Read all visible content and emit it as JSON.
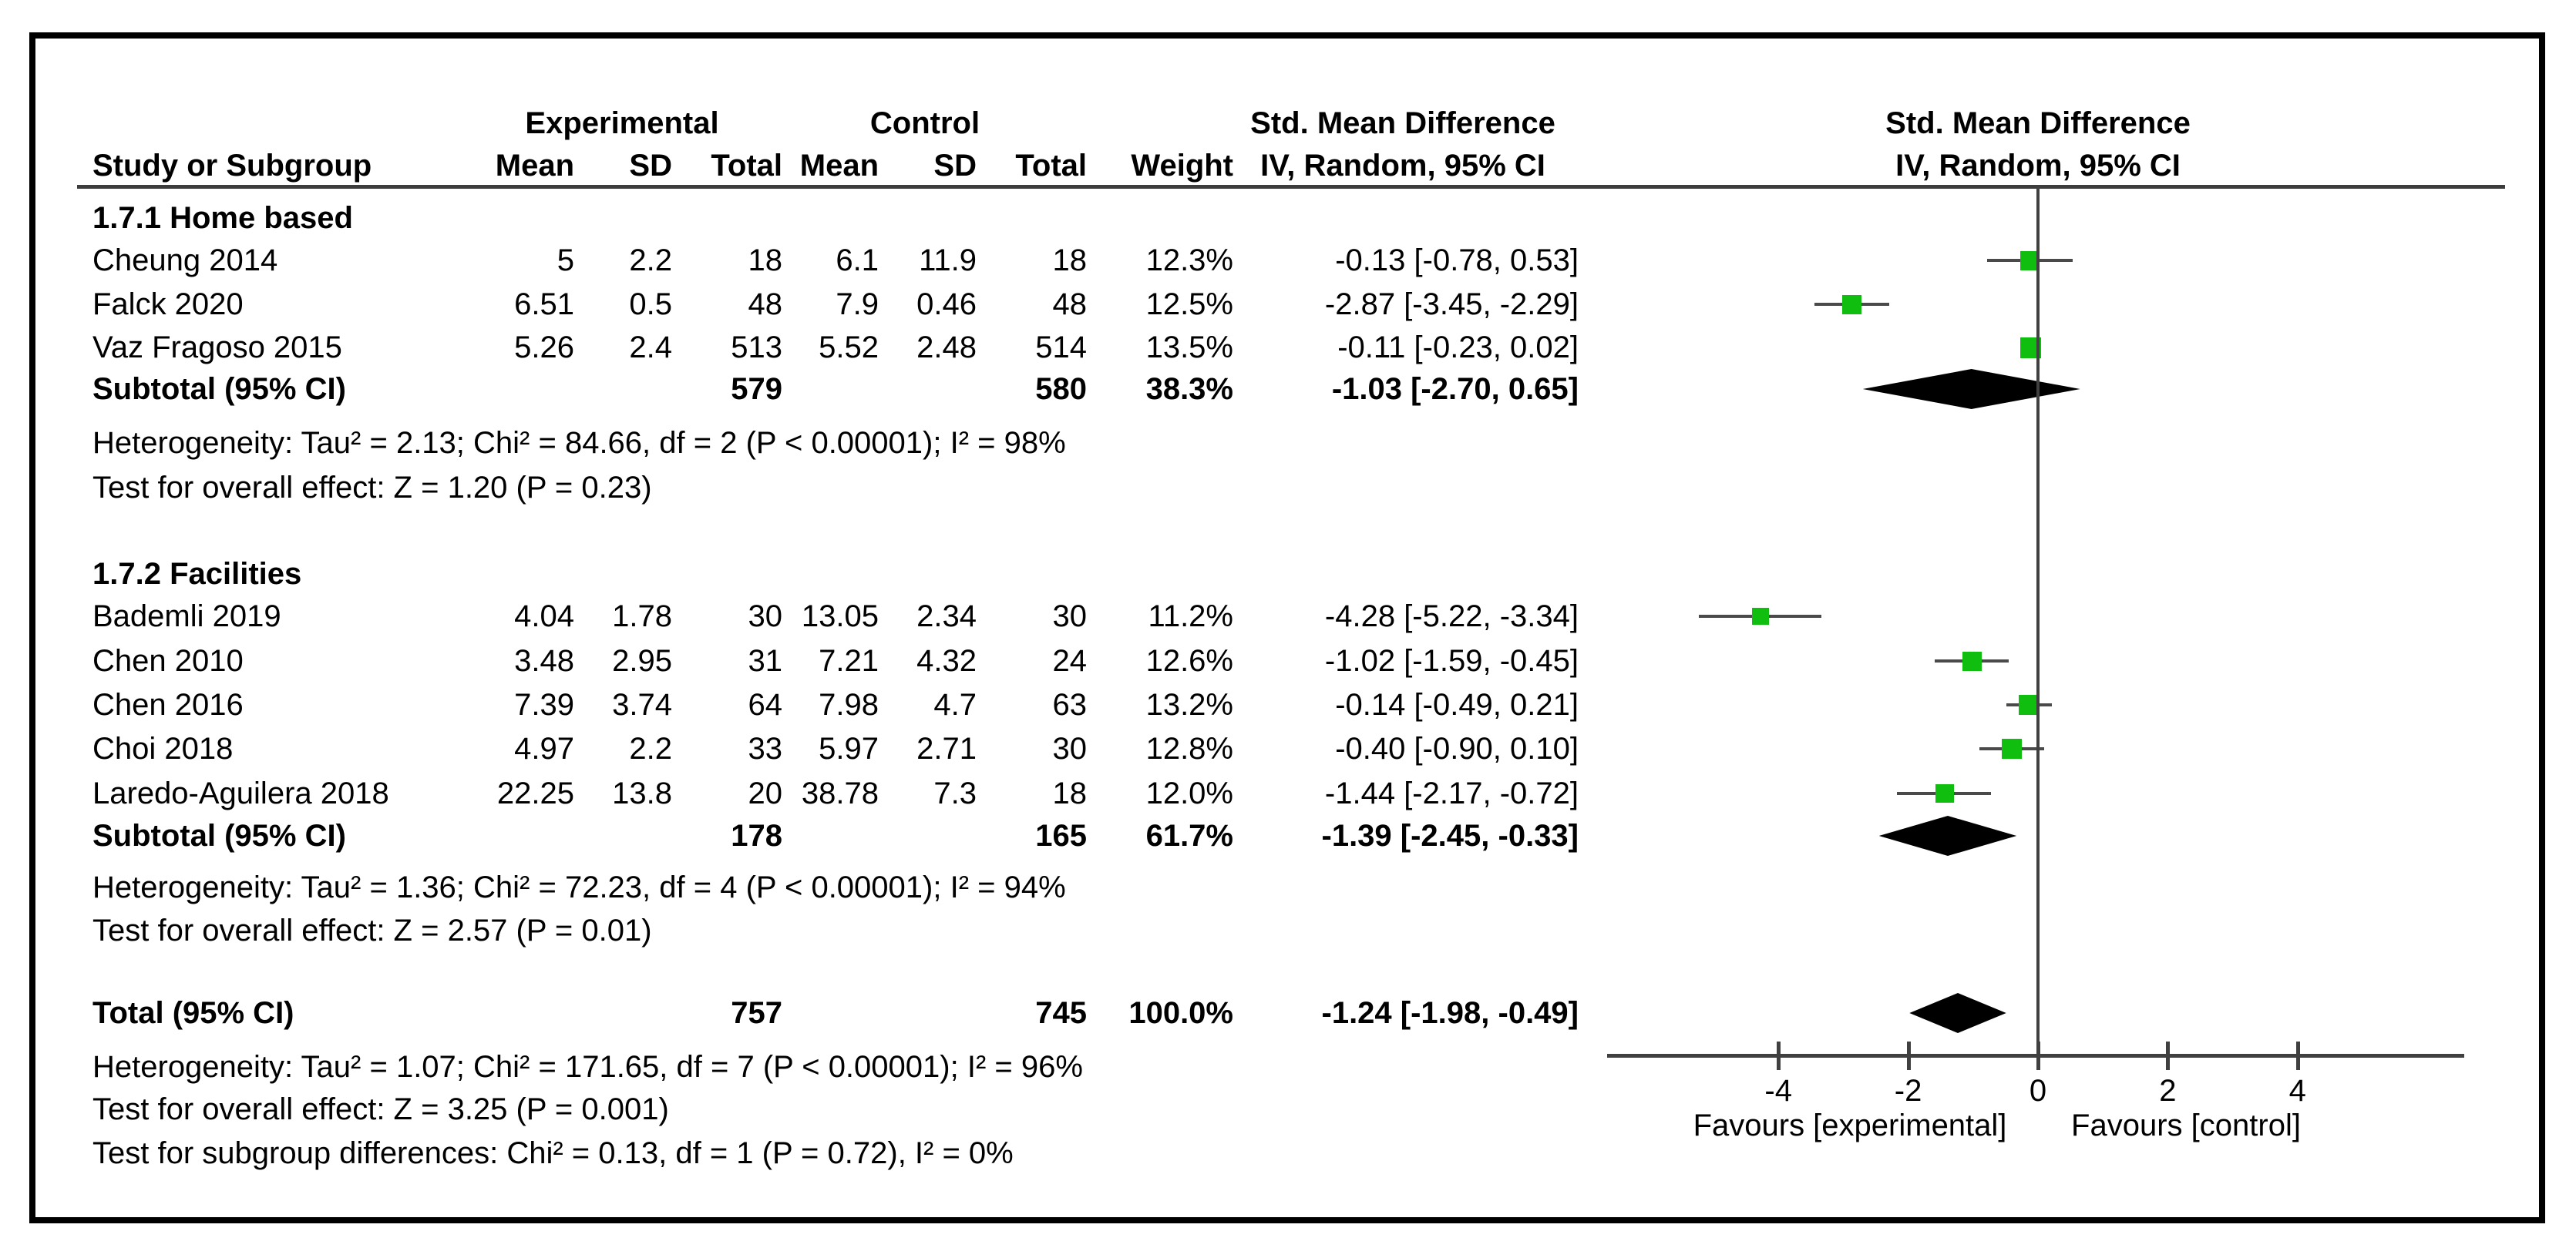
{
  "figure": {
    "columns": {
      "study": "Study or Subgroup",
      "experimental": "Experimental",
      "control": "Control",
      "mean": "Mean",
      "sd": "SD",
      "total": "Total",
      "weight": "Weight",
      "smd": "Std. Mean Difference",
      "method": "IV, Random, 95% CI"
    },
    "plot_header": {
      "line1": "Std. Mean Difference",
      "line2": "IV, Random, 95% CI"
    }
  },
  "chart_data": {
    "type": "forest",
    "effect_measure": "Std. Mean Difference",
    "method": "IV, Random, 95% CI",
    "axis": {
      "xmin": -6.7,
      "xmax": 6.7,
      "ticks": [
        -4,
        -2,
        0,
        2,
        4
      ],
      "zero_line": 0,
      "favours_left": "Favours [experimental]",
      "favours_right": "Favours [control]"
    },
    "colors": {
      "marker_square": "#0fbe0f",
      "ci_line": "#4a4a4a",
      "diamond": "#000000",
      "axis": "#404040"
    },
    "groups": [
      {
        "label": "1.7.1 Home based",
        "studies": [
          {
            "name": "Cheung 2014",
            "exp_mean": "5",
            "exp_sd": "2.2",
            "exp_total": "18",
            "ctrl_mean": "6.1",
            "ctrl_sd": "11.9",
            "ctrl_total": "18",
            "weight": "12.3%",
            "weight_value": 12.3,
            "ci_label": "-0.13 [-0.78, 0.53]",
            "est": -0.13,
            "lo": -0.78,
            "hi": 0.53
          },
          {
            "name": "Falck 2020",
            "exp_mean": "6.51",
            "exp_sd": "0.5",
            "exp_total": "48",
            "ctrl_mean": "7.9",
            "ctrl_sd": "0.46",
            "ctrl_total": "48",
            "weight": "12.5%",
            "weight_value": 12.5,
            "ci_label": "-2.87 [-3.45, -2.29]",
            "est": -2.87,
            "lo": -3.45,
            "hi": -2.29
          },
          {
            "name": "Vaz Fragoso 2015",
            "exp_mean": "5.26",
            "exp_sd": "2.4",
            "exp_total": "513",
            "ctrl_mean": "5.52",
            "ctrl_sd": "2.48",
            "ctrl_total": "514",
            "weight": "13.5%",
            "weight_value": 13.5,
            "ci_label": "-0.11 [-0.23, 0.02]",
            "est": -0.11,
            "lo": -0.23,
            "hi": 0.02
          }
        ],
        "subtotal": {
          "label": "Subtotal (95% CI)",
          "exp_total": "579",
          "ctrl_total": "580",
          "weight": "38.3%",
          "ci_label": "-1.03 [-2.70, 0.65]",
          "est": -1.03,
          "lo": -2.7,
          "hi": 0.65
        },
        "heterogeneity": "Heterogeneity: Tau² = 2.13; Chi² = 84.66, df = 2 (P < 0.00001); I² = 98%",
        "overall_effect": "Test for overall effect: Z = 1.20 (P = 0.23)"
      },
      {
        "label": "1.7.2 Facilities",
        "studies": [
          {
            "name": "Bademli 2019",
            "exp_mean": "4.04",
            "exp_sd": "1.78",
            "exp_total": "30",
            "ctrl_mean": "13.05",
            "ctrl_sd": "2.34",
            "ctrl_total": "30",
            "weight": "11.2%",
            "weight_value": 11.2,
            "ci_label": "-4.28 [-5.22, -3.34]",
            "est": -4.28,
            "lo": -5.22,
            "hi": -3.34
          },
          {
            "name": "Chen 2010",
            "exp_mean": "3.48",
            "exp_sd": "2.95",
            "exp_total": "31",
            "ctrl_mean": "7.21",
            "ctrl_sd": "4.32",
            "ctrl_total": "24",
            "weight": "12.6%",
            "weight_value": 12.6,
            "ci_label": "-1.02 [-1.59, -0.45]",
            "est": -1.02,
            "lo": -1.59,
            "hi": -0.45
          },
          {
            "name": "Chen 2016",
            "exp_mean": "7.39",
            "exp_sd": "3.74",
            "exp_total": "64",
            "ctrl_mean": "7.98",
            "ctrl_sd": "4.7",
            "ctrl_total": "63",
            "weight": "13.2%",
            "weight_value": 13.2,
            "ci_label": "-0.14 [-0.49, 0.21]",
            "est": -0.14,
            "lo": -0.49,
            "hi": 0.21
          },
          {
            "name": "Choi 2018",
            "exp_mean": "4.97",
            "exp_sd": "2.2",
            "exp_total": "33",
            "ctrl_mean": "5.97",
            "ctrl_sd": "2.71",
            "ctrl_total": "30",
            "weight": "12.8%",
            "weight_value": 12.8,
            "ci_label": "-0.40 [-0.90, 0.10]",
            "est": -0.4,
            "lo": -0.9,
            "hi": 0.1
          },
          {
            "name": "Laredo-Aguilera 2018",
            "exp_mean": "22.25",
            "exp_sd": "13.8",
            "exp_total": "20",
            "ctrl_mean": "38.78",
            "ctrl_sd": "7.3",
            "ctrl_total": "18",
            "weight": "12.0%",
            "weight_value": 12.0,
            "ci_label": "-1.44 [-2.17, -0.72]",
            "est": -1.44,
            "lo": -2.17,
            "hi": -0.72
          }
        ],
        "subtotal": {
          "label": "Subtotal (95% CI)",
          "exp_total": "178",
          "ctrl_total": "165",
          "weight": "61.7%",
          "ci_label": "-1.39 [-2.45, -0.33]",
          "est": -1.39,
          "lo": -2.45,
          "hi": -0.33
        },
        "heterogeneity": "Heterogeneity: Tau² = 1.36; Chi² = 72.23, df = 4 (P < 0.00001); I² = 94%",
        "overall_effect": "Test for overall effect: Z = 2.57 (P = 0.01)"
      }
    ],
    "total": {
      "label": "Total (95% CI)",
      "exp_total": "757",
      "ctrl_total": "745",
      "weight": "100.0%",
      "ci_label": "-1.24 [-1.98, -0.49]",
      "est": -1.24,
      "lo": -1.98,
      "hi": -0.49
    },
    "total_footnotes": [
      "Heterogeneity: Tau² = 1.07; Chi² = 171.65, df = 7 (P < 0.00001); I² = 96%",
      "Test for overall effect: Z = 3.25 (P = 0.001)",
      "Test for subgroup differences: Chi² = 0.13, df = 1 (P = 0.72), I² = 0%"
    ]
  }
}
